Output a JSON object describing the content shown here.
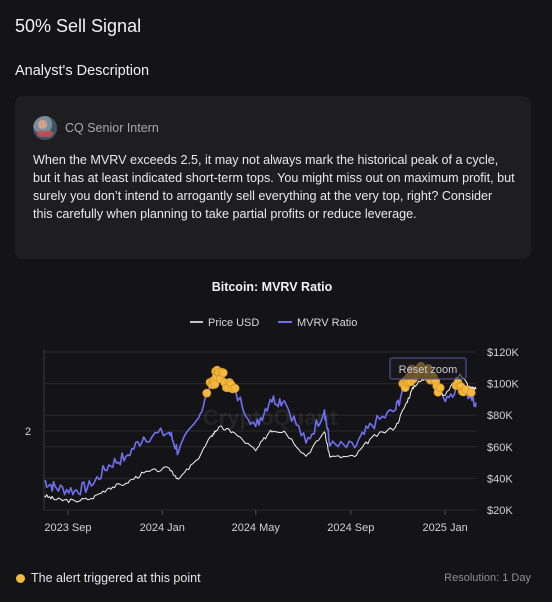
{
  "page": {
    "title": "50% Sell Signal",
    "section_title": "Analyst's Description"
  },
  "analyst": {
    "name": "CQ Senior Intern",
    "description": "When the MVRV exceeds 2.5, it may not always mark the historical peak of a cycle, but it has at least indicated short-term tops. You might miss out on maximum profit, but surely you don’t intend to arrogantly sell everything at the very top, right? Consider this carefully when planning to take partial profits or reduce leverage."
  },
  "chart": {
    "reset_zoom_label": "Reset zoom",
    "watermark": "CryptoQuant"
  },
  "chart_data": {
    "type": "line",
    "title": "Bitcoin: MVRV Ratio",
    "legend": {
      "placement": "top-center"
    },
    "x_ticks": [
      "2023 Sep",
      "2024 Jan",
      "2024 May",
      "2024 Sep",
      "2025 Jan"
    ],
    "x_range": [
      "2023-08-01",
      "2025-02-10"
    ],
    "y_left": {
      "ticks": [
        "2"
      ],
      "range": [
        0.95,
        3.05
      ]
    },
    "y_right": {
      "ticks": [
        "$20K",
        "$40K",
        "$60K",
        "$80K",
        "$100K",
        "$120K"
      ],
      "range": [
        20000,
        120000
      ]
    },
    "series": [
      {
        "name": "Price USD",
        "axis": "right",
        "color": "#ffffff",
        "points": [
          [
            "2023-08-01",
            29200
          ],
          [
            "2023-08-17",
            26500
          ],
          [
            "2023-09-10",
            25800
          ],
          [
            "2023-10-01",
            27300
          ],
          [
            "2023-10-24",
            34000
          ],
          [
            "2023-11-15",
            37000
          ],
          [
            "2023-12-08",
            43500
          ],
          [
            "2024-01-10",
            46500
          ],
          [
            "2024-01-22",
            39500
          ],
          [
            "2024-02-15",
            51800
          ],
          [
            "2024-03-05",
            67000
          ],
          [
            "2024-03-14",
            72500
          ],
          [
            "2024-04-01",
            69500
          ],
          [
            "2024-05-01",
            57500
          ],
          [
            "2024-05-20",
            70500
          ],
          [
            "2024-06-07",
            70000
          ],
          [
            "2024-07-05",
            54000
          ],
          [
            "2024-07-29",
            69500
          ],
          [
            "2024-08-05",
            53500
          ],
          [
            "2024-09-06",
            53800
          ],
          [
            "2024-09-28",
            65900
          ],
          [
            "2024-10-29",
            72500
          ],
          [
            "2024-11-12",
            88000
          ],
          [
            "2024-11-22",
            98900
          ],
          [
            "2024-12-05",
            103000
          ],
          [
            "2024-12-17",
            106500
          ],
          [
            "2024-12-30",
            92500
          ],
          [
            "2025-01-20",
            106000
          ],
          [
            "2025-02-03",
            97000
          ],
          [
            "2025-02-10",
            96500
          ]
        ]
      },
      {
        "name": "MVRV Ratio",
        "axis": "left",
        "color": "#6f6ff0",
        "points": [
          [
            "2023-08-01",
            1.34
          ],
          [
            "2023-08-17",
            1.24
          ],
          [
            "2023-09-10",
            1.21
          ],
          [
            "2023-10-01",
            1.27
          ],
          [
            "2023-10-24",
            1.55
          ],
          [
            "2023-11-15",
            1.66
          ],
          [
            "2023-12-08",
            1.92
          ],
          [
            "2024-01-10",
            1.98
          ],
          [
            "2024-01-22",
            1.72
          ],
          [
            "2024-02-15",
            2.15
          ],
          [
            "2024-03-05",
            2.62
          ],
          [
            "2024-03-14",
            2.78
          ],
          [
            "2024-04-01",
            2.56
          ],
          [
            "2024-05-01",
            2.06
          ],
          [
            "2024-05-20",
            2.42
          ],
          [
            "2024-06-07",
            2.4
          ],
          [
            "2024-07-05",
            1.84
          ],
          [
            "2024-07-29",
            2.28
          ],
          [
            "2024-08-05",
            1.8
          ],
          [
            "2024-09-06",
            1.78
          ],
          [
            "2024-09-28",
            2.08
          ],
          [
            "2024-10-29",
            2.28
          ],
          [
            "2024-11-12",
            2.68
          ],
          [
            "2024-11-22",
            2.78
          ],
          [
            "2024-12-05",
            2.8
          ],
          [
            "2024-12-17",
            2.72
          ],
          [
            "2024-12-30",
            2.44
          ],
          [
            "2025-01-20",
            2.6
          ],
          [
            "2025-02-03",
            2.44
          ],
          [
            "2025-02-10",
            2.38
          ]
        ]
      }
    ],
    "alerts": {
      "threshold": 2.5,
      "color": "#f5b942",
      "label": "The alert triggered at this point"
    },
    "resolution": "Resolution: 1 Day"
  }
}
